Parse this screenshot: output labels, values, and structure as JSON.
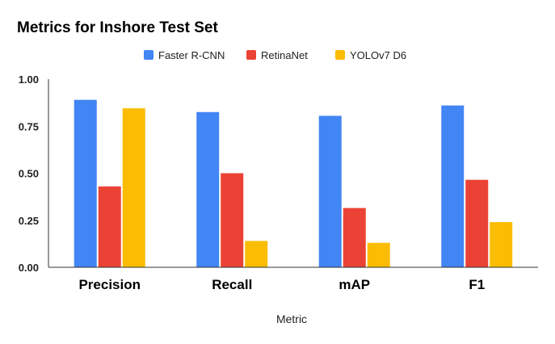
{
  "chart_data": {
    "type": "bar",
    "title": "Metrics for Inshore Test Set",
    "xlabel": "Metric",
    "ylabel": "",
    "categories": [
      "Precision",
      "Recall",
      "mAP",
      "F1"
    ],
    "series": [
      {
        "name": "Faster R-CNN",
        "color": "#4285f4",
        "values": [
          0.89,
          0.825,
          0.805,
          0.86
        ]
      },
      {
        "name": "RetinaNet",
        "color": "#ea4335",
        "values": [
          0.43,
          0.5,
          0.315,
          0.465
        ]
      },
      {
        "name": "YOLOv7 D6",
        "color": "#fbbc04",
        "values": [
          0.845,
          0.14,
          0.13,
          0.24
        ]
      }
    ],
    "ylim": [
      0,
      1
    ],
    "yticks": [
      "0.00",
      "0.25",
      "0.50",
      "0.75",
      "1.00"
    ],
    "ytick_values": [
      0,
      0.25,
      0.5,
      0.75,
      1
    ],
    "legend_position": "top-center",
    "grid": false
  }
}
